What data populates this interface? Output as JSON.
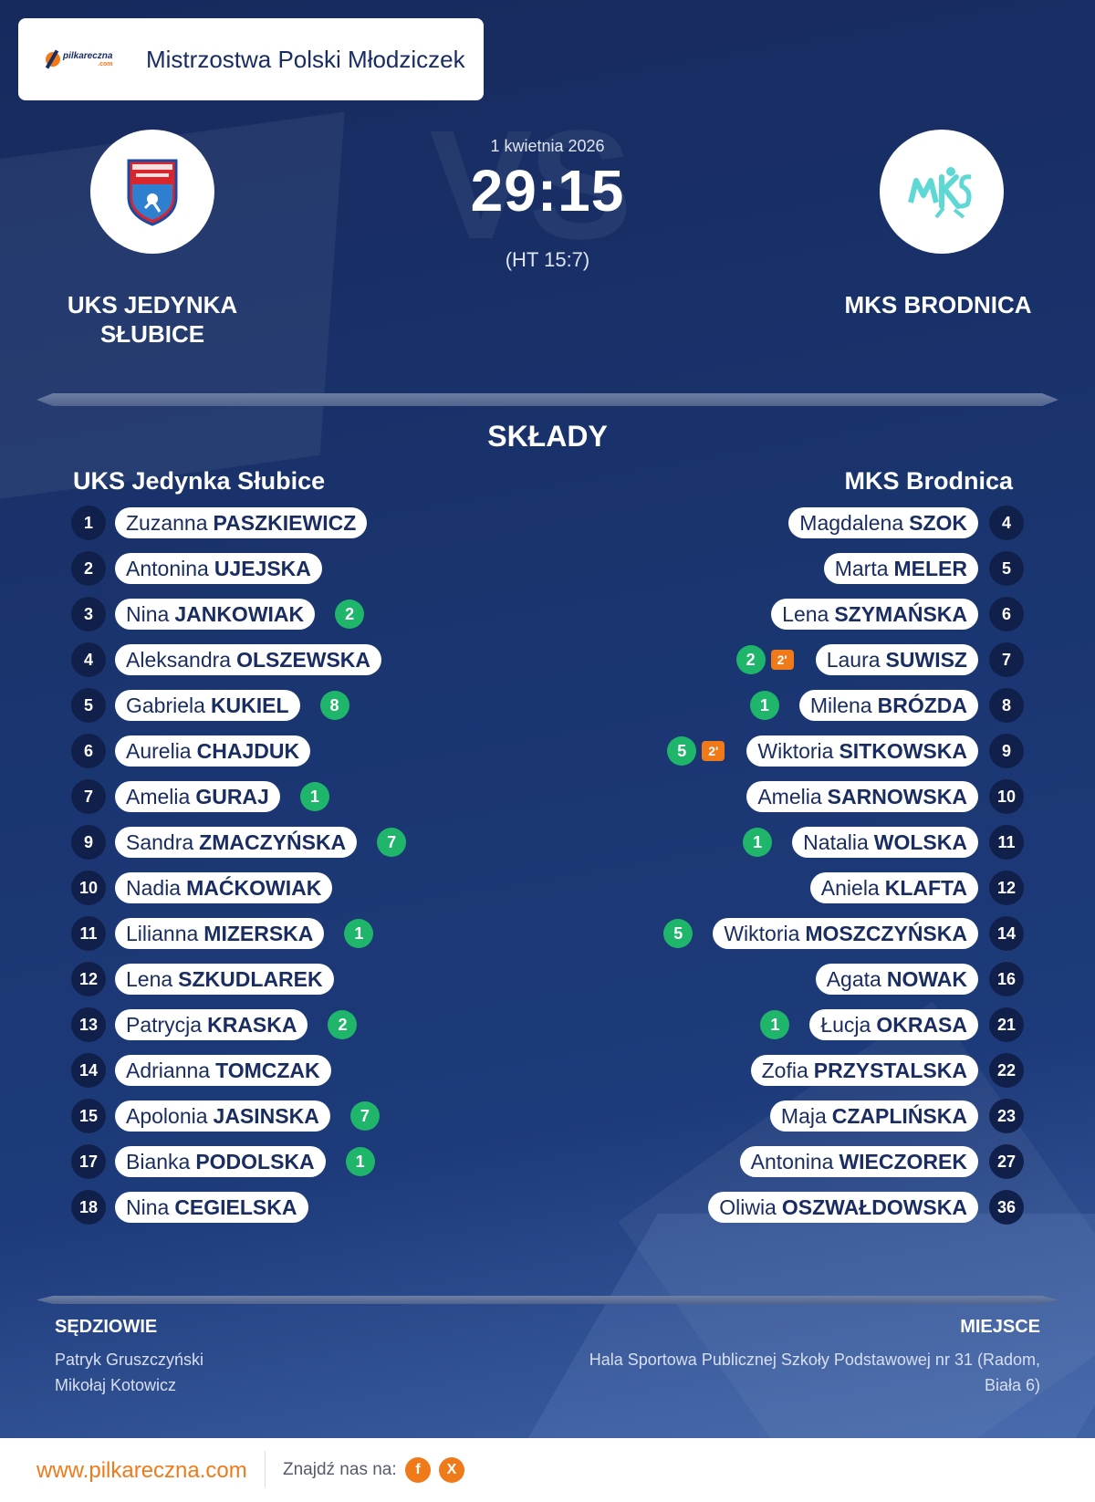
{
  "header": {
    "competition": "Mistrzostwa Polski Młodziczek",
    "logo_text": "pilkareczna",
    "logo_suffix": ".com"
  },
  "match": {
    "date": "1 kwietnia 2026",
    "score": "29:15",
    "halftime": "(HT 15:7)",
    "watermark": "VS"
  },
  "home": {
    "name": "UKS JEDYNKA SŁUBICE",
    "roster_title": "UKS Jedynka Słubice",
    "players": [
      {
        "number": "1",
        "first": "Zuzanna",
        "last": "PASZKIEWICZ",
        "goals": null
      },
      {
        "number": "2",
        "first": "Antonina",
        "last": "UJEJSKA",
        "goals": null
      },
      {
        "number": "3",
        "first": "Nina",
        "last": "JANKOWIAK",
        "goals": "2"
      },
      {
        "number": "4",
        "first": "Aleksandra",
        "last": "OLSZEWSKA",
        "goals": null
      },
      {
        "number": "5",
        "first": "Gabriela",
        "last": "KUKIEL",
        "goals": "8"
      },
      {
        "number": "6",
        "first": "Aurelia",
        "last": "CHAJDUK",
        "goals": null
      },
      {
        "number": "7",
        "first": "Amelia",
        "last": "GURAJ",
        "goals": "1"
      },
      {
        "number": "9",
        "first": "Sandra",
        "last": "ZMACZYŃSKA",
        "goals": "7"
      },
      {
        "number": "10",
        "first": "Nadia",
        "last": "MAĆKOWIAK",
        "goals": null
      },
      {
        "number": "11",
        "first": "Lilianna",
        "last": "MIZERSKA",
        "goals": "1"
      },
      {
        "number": "12",
        "first": "Lena",
        "last": "SZKUDLAREK",
        "goals": null
      },
      {
        "number": "13",
        "first": "Patrycja",
        "last": "KRASKA",
        "goals": "2"
      },
      {
        "number": "14",
        "first": "Adrianna",
        "last": "TOMCZAK",
        "goals": null
      },
      {
        "number": "15",
        "first": "Apolonia",
        "last": "JASINSKA",
        "goals": "7"
      },
      {
        "number": "17",
        "first": "Bianka",
        "last": "PODOLSKA",
        "goals": "1"
      },
      {
        "number": "18",
        "first": "Nina",
        "last": "CEGIELSKA",
        "goals": null
      }
    ]
  },
  "away": {
    "name": "MKS BRODNICA",
    "roster_title": "MKS Brodnica",
    "players": [
      {
        "number": "4",
        "first": "Magdalena",
        "last": "SZOK",
        "goals": null,
        "penalty": null
      },
      {
        "number": "5",
        "first": "Marta",
        "last": "MELER",
        "goals": null,
        "penalty": null
      },
      {
        "number": "6",
        "first": "Lena",
        "last": "SZYMAŃSKA",
        "goals": null,
        "penalty": null
      },
      {
        "number": "7",
        "first": "Laura",
        "last": "SUWISZ",
        "goals": "2",
        "penalty": "2'"
      },
      {
        "number": "8",
        "first": "Milena",
        "last": "BRÓZDA",
        "goals": "1",
        "penalty": null
      },
      {
        "number": "9",
        "first": "Wiktoria",
        "last": "SITKOWSKA",
        "goals": "5",
        "penalty": "2'"
      },
      {
        "number": "10",
        "first": "Amelia",
        "last": "SARNOWSKA",
        "goals": null,
        "penalty": null
      },
      {
        "number": "11",
        "first": "Natalia",
        "last": "WOLSKA",
        "goals": "1",
        "penalty": null
      },
      {
        "number": "12",
        "first": "Aniela",
        "last": "KLAFTA",
        "goals": null,
        "penalty": null
      },
      {
        "number": "14",
        "first": "Wiktoria",
        "last": "MOSZCZYŃSKA",
        "goals": "5",
        "penalty": null
      },
      {
        "number": "16",
        "first": "Agata",
        "last": "NOWAK",
        "goals": null,
        "penalty": null
      },
      {
        "number": "21",
        "first": "Łucja",
        "last": "OKRASA",
        "goals": "1",
        "penalty": null
      },
      {
        "number": "22",
        "first": "Zofia",
        "last": "PRZYSTALSKA",
        "goals": null,
        "penalty": null
      },
      {
        "number": "23",
        "first": "Maja",
        "last": "CZAPLIŃSKA",
        "goals": null,
        "penalty": null
      },
      {
        "number": "27",
        "first": "Antonina",
        "last": "WIECZOREK",
        "goals": null,
        "penalty": null
      },
      {
        "number": "36",
        "first": "Oliwia",
        "last": "OSZWAŁDOWSKA",
        "goals": null,
        "penalty": null
      }
    ]
  },
  "section_title": "SKŁADY",
  "referees": {
    "heading": "SĘDZIOWIE",
    "names": [
      "Patryk Gruszczyński",
      "Mikołaj Kotowicz"
    ]
  },
  "venue": {
    "heading": "MIEJSCE",
    "lines": [
      "Hala Sportowa Publicznej Szkoły Podstawowej nr 31 (Radom,",
      "Biała 6)"
    ]
  },
  "footer": {
    "url": "www.pilkareczna.com",
    "find_us": "Znajdź nas na:",
    "facebook": "f",
    "x": "X"
  },
  "colors": {
    "background": "#1a3570",
    "accent": "#f07a1a",
    "goal_badge": "#1fb56a",
    "shirt_badge": "#11204a"
  }
}
